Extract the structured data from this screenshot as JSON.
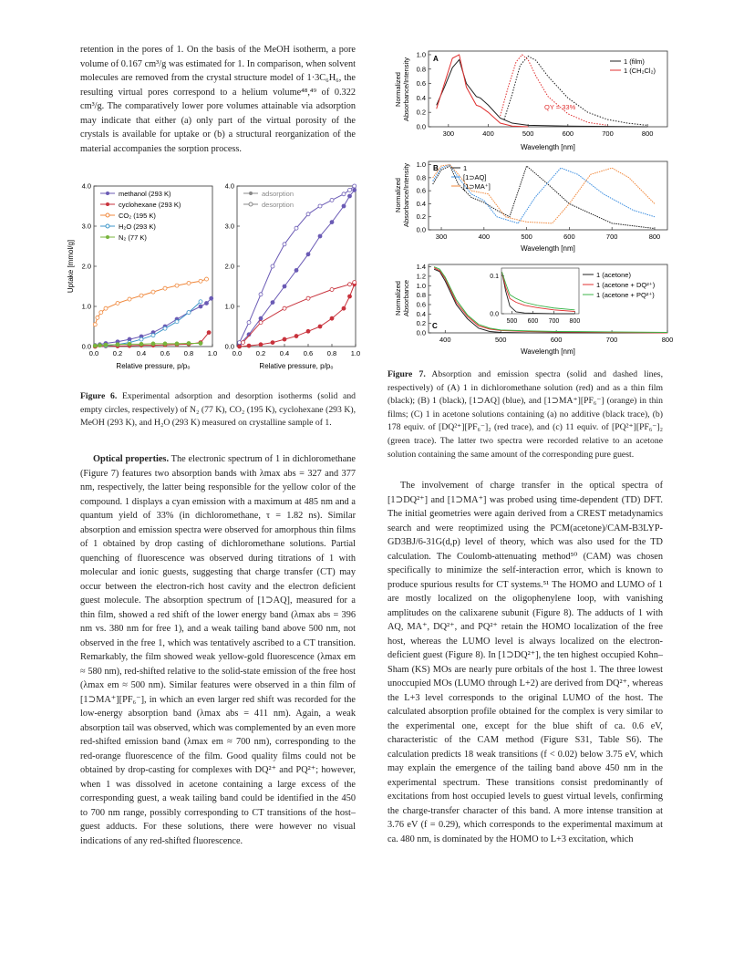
{
  "left_column": {
    "para_intro": "retention in the pores of 1. On the basis of the MeOH isotherm, a pore volume of 0.167 cm³/g was estimated for 1. In comparison, when solvent molecules are removed from the crystal structure model of 1·3C₆H₆, the resulting virtual pores correspond to a helium volume⁴⁸,⁴⁹ of 0.322 cm³/g. The comparatively lower pore volumes attainable via adsorption may indicate that either (a) only part of the virtual porosity of the crystals is available for uptake or (b) a structural reorganization of the material accompanies the sorption process.",
    "fig6_caption_label": "Figure 6.",
    "fig6_caption_text": " Experimental adsorption and desorption isotherms (solid and empty circles, respectively) of N₂ (77 K), CO₂ (195 K), cyclohexane (293 K), MeOH (293 K), and H₂O (293 K) measured on crystalline sample of 1.",
    "optical_heading": "Optical properties.",
    "optical_text": " The electronic spectrum of 1 in dichloromethane (Figure 7) features two absorption bands with λmax abs = 327 and 377 nm, respectively, the latter being responsible for the yellow color of the compound. 1 displays a cyan emission with a maximum at 485 nm and a quantum yield of 33% (in dichloromethane, τ = 1.82 ns). Similar absorption and emission spectra were observed for amorphous thin films of 1 obtained by drop casting of dichloromethane solutions. Partial quenching of fluorescence was observed during titrations of 1 with molecular and ionic guests, suggesting that charge transfer (CT) may occur between the electron-rich host cavity and the electron deficient guest molecule. The absorption spectrum of [1⊃AQ], measured for a thin film, showed a red shift of the lower energy band (λmax abs = 396 nm vs. 380 nm for free 1), and a weak tailing band above 500 nm, not observed in the free 1, which was tentatively ascribed to a CT transition. Remarkably, the film showed weak yellow-gold fluorescence (λmax em ≈ 580 nm), red-shifted relative to the solid-state emission of the free host (λmax em ≈ 500 nm). Similar features were observed in a thin film of [1⊃MA⁺][PF₆⁻], in which an even larger red shift was recorded for the low-energy absorption band (λmax abs = 411 nm). Again, a weak absorption tail was observed, which was complemented by an even more red-shifted emission band (λmax em ≈ 700 nm), corresponding to the red-orange fluorescence of the film. Good quality films could not be obtained by drop-casting for complexes with DQ²⁺ and PQ²⁺; however, when 1 was dissolved in acetone containing a large excess of the corresponding guest, a weak tailing band could be identified in the 450 to 700 nm range, possibly corresponding to CT transitions of the host–guest adducts. For these solutions, there were however no visual indications of any red-shifted fluorescence."
  },
  "right_column": {
    "fig7_caption_label": "Figure 7.",
    "fig7_caption_text": " Absorption and emission spectra (solid and dashed lines, respectively) of (A) 1 in dichloromethane solution (red) and as a thin film (black); (B) 1 (black), [1⊃AQ] (blue), and [1⊃MA⁺][PF₆⁻] (orange) in thin films; (C) 1 in acetone solutions containing (a) no additive (black trace), (b) 178 equiv. of [DQ²⁺][PF₆⁻]₂ (red trace), and (c) 11 equiv. of [PQ²⁺][PF₆⁻]₂ (green trace). The latter two spectra were recorded relative to an acetone solution containing the same amount of the corresponding pure guest.",
    "ct_text": "The involvement of charge transfer in the optical spectra of [1⊃DQ²⁺] and [1⊃MA⁺] was probed using time-dependent (TD) DFT. The initial geometries were again derived from a CREST metadynamics search and were reoptimized using the PCM(acetone)/CAM-B3LYP-GD3BJ/6-31G(d,p) level of theory, which was also used for the TD calculation. The Coulomb-attenuating method⁵⁰ (CAM) was chosen specifically to minimize the self-interaction error, which is known to produce spurious results for CT systems.⁵¹ The HOMO and LUMO of 1 are mostly localized on the oligophenylene loop, with vanishing amplitudes on the calixarene subunit (Figure 8). The adducts of 1 with AQ, MA⁺, DQ²⁺, and PQ²⁺ retain the HOMO localization of the free host, whereas the LUMO level is always localized on the electron-deficient guest (Figure 8). In [1⊃DQ²⁺], the ten highest occupied Kohn–Sham (KS) MOs are nearly pure orbitals of the host 1. The three lowest unoccupied MOs (LUMO through L+2) are derived from DQ²⁺, whereas the L+3 level corresponds to the original LUMO of the host. The calculated absorption profile obtained for the complex is very similar to the experimental one, except for the blue shift of ca. 0.6 eV, characteristic of the CAM method (Figure S31, Table S6). The calculation predicts 18 weak transitions (f < 0.02) below 3.75 eV, which may explain the emergence of the tailing band above 450 nm in the experimental spectrum. These transitions consist predominantly of excitations from host occupied levels to guest virtual levels, confirming the charge-transfer character of this band. A more intense transition at 3.76 eV (f = 0.29), which corresponds to the experimental maximum at ca. 480 nm, is dominated by the HOMO to L+3 excitation, which"
  },
  "fig6": {
    "ylabel": "Uptake [mmol/g]",
    "xlabel": "Relative pressure, p/p₀",
    "yticks": [
      "0.0",
      "1.0",
      "2.0",
      "3.0",
      "4.0"
    ],
    "xticks": [
      "0.0",
      "0.2",
      "0.4",
      "0.6",
      "0.8",
      "1.0"
    ],
    "legend_left": [
      "methanol (293 K)",
      "cyclohexane (293 K)",
      "CO₂ (195 K)",
      "H₂O (293 K)",
      "N₂ (77 K)"
    ],
    "legend_right": [
      "adsorption",
      "desorption"
    ],
    "colors": {
      "methanol": "#6b5bb5",
      "cyclohexane": "#c8323c",
      "co2": "#f0883c",
      "h2o": "#3c96c8",
      "n2": "#78b43c"
    }
  },
  "fig7": {
    "ylabel_ab": [
      "Normalized",
      "Absorbance/Intensity"
    ],
    "ylabel_c": [
      "Normalized",
      "Absorbance"
    ],
    "xlabel": "Wavelength [nm]",
    "panelA": {
      "tag": "A",
      "legend": [
        "1 (film)",
        "1 (CH₂Cl₂)"
      ],
      "qy": "QY = 33%",
      "xticks": [
        "300",
        "400",
        "500",
        "600",
        "700",
        "800"
      ],
      "yticks": [
        "0.0",
        "0.2",
        "0.4",
        "0.6",
        "0.8",
        "1.0"
      ]
    },
    "panelB": {
      "tag": "B",
      "legend": [
        "1",
        "[1⊃AQ]",
        "[1⊃MA⁺]"
      ],
      "xticks": [
        "300",
        "400",
        "500",
        "600",
        "700",
        "800"
      ],
      "yticks": [
        "0.0",
        "0.2",
        "0.4",
        "0.6",
        "0.8",
        "1.0"
      ]
    },
    "panelC": {
      "tag": "C",
      "legend": [
        "1 (acetone)",
        "1 (acetone + DQ²⁺)",
        "1 (acetone + PQ²⁺)"
      ],
      "xticks": [
        "400",
        "500",
        "600",
        "700",
        "800"
      ],
      "yticks": [
        "0.0",
        "0.2",
        "0.4",
        "0.6",
        "0.8",
        "1.0",
        "1.2",
        "1.4"
      ],
      "inset_xticks": [
        "500",
        "600",
        "700",
        "800"
      ],
      "inset_yticks": [
        "0.0",
        "0.1"
      ]
    }
  },
  "chart_data": [
    {
      "type": "scatter",
      "title": "",
      "xlabel": "Relative pressure, p/p₀",
      "ylabel": "Uptake [mmol/g]",
      "xlim": [
        0,
        1.0
      ],
      "ylim": [
        0,
        4.0
      ],
      "series": [
        {
          "name": "methanol (293 K)",
          "x": [
            0.01,
            0.05,
            0.1,
            0.2,
            0.3,
            0.4,
            0.5,
            0.6,
            0.7,
            0.8,
            0.9,
            0.95,
            0.99
          ],
          "y": [
            0.03,
            0.05,
            0.08,
            0.12,
            0.18,
            0.25,
            0.35,
            0.5,
            0.68,
            0.85,
            1.0,
            1.08,
            1.2
          ]
        },
        {
          "name": "cyclohexane (293 K)",
          "x": [
            0.01,
            0.1,
            0.2,
            0.3,
            0.4,
            0.5,
            0.6,
            0.7,
            0.8,
            0.9,
            0.97
          ],
          "y": [
            0.0,
            0.01,
            0.01,
            0.02,
            0.03,
            0.03,
            0.04,
            0.05,
            0.06,
            0.1,
            0.35
          ]
        },
        {
          "name": "CO₂ (195 K)",
          "x": [
            0.01,
            0.03,
            0.06,
            0.1,
            0.2,
            0.3,
            0.4,
            0.5,
            0.6,
            0.7,
            0.8,
            0.9,
            0.95
          ],
          "y": [
            0.55,
            0.72,
            0.85,
            0.95,
            1.08,
            1.18,
            1.27,
            1.36,
            1.45,
            1.52,
            1.58,
            1.63,
            1.68
          ]
        },
        {
          "name": "H₂O (293 K)",
          "x": [
            0.1,
            0.2,
            0.3,
            0.4,
            0.5,
            0.6,
            0.7,
            0.8,
            0.9
          ],
          "y": [
            0.02,
            0.05,
            0.1,
            0.18,
            0.28,
            0.45,
            0.62,
            0.85,
            1.12
          ]
        },
        {
          "name": "N₂ (77 K)",
          "x": [
            0.01,
            0.05,
            0.1,
            0.2,
            0.3,
            0.4,
            0.5,
            0.6,
            0.7,
            0.8,
            0.9
          ],
          "y": [
            0.02,
            0.03,
            0.04,
            0.05,
            0.06,
            0.06,
            0.07,
            0.07,
            0.07,
            0.08,
            0.08
          ]
        }
      ]
    },
    {
      "type": "scatter",
      "title": "",
      "xlabel": "Relative pressure, p/p₀",
      "ylim": [
        0,
        4.0
      ],
      "xlim": [
        0,
        1.0
      ],
      "series": [
        {
          "name": "adsorption",
          "x": [
            0.02,
            0.1,
            0.2,
            0.3,
            0.4,
            0.5,
            0.6,
            0.7,
            0.8,
            0.9,
            0.95,
            0.99
          ],
          "y": [
            0.05,
            0.3,
            0.7,
            1.1,
            1.5,
            1.9,
            2.3,
            2.75,
            3.1,
            3.5,
            3.75,
            3.9
          ]
        },
        {
          "name": "desorption",
          "x": [
            0.02,
            0.1,
            0.2,
            0.3,
            0.4,
            0.5,
            0.6,
            0.7,
            0.8,
            0.9,
            0.95,
            0.99
          ],
          "y": [
            0.1,
            0.6,
            1.3,
            2.0,
            2.55,
            2.95,
            3.3,
            3.5,
            3.65,
            3.8,
            3.9,
            4.0
          ]
        },
        {
          "name": "cyclohexane adsorption",
          "x": [
            0.02,
            0.1,
            0.2,
            0.3,
            0.4,
            0.5,
            0.6,
            0.7,
            0.8,
            0.9,
            0.95,
            0.99
          ],
          "y": [
            0.0,
            0.02,
            0.05,
            0.1,
            0.18,
            0.26,
            0.38,
            0.5,
            0.7,
            0.95,
            1.25,
            1.55
          ]
        },
        {
          "name": "cyclohexane desorption",
          "x": [
            0.05,
            0.2,
            0.4,
            0.6,
            0.8,
            0.95,
            0.99
          ],
          "y": [
            0.1,
            0.6,
            0.95,
            1.2,
            1.42,
            1.55,
            1.6
          ]
        }
      ]
    },
    {
      "type": "line",
      "title": "",
      "xlabel": "Wavelength [nm]",
      "xlim": [
        250,
        850
      ],
      "ylim": [
        0,
        1.05
      ],
      "series": [
        {
          "name": "1 (film) absorption",
          "x": [
            270,
            290,
            310,
            327,
            345,
            370,
            380,
            400,
            430,
            460,
            500,
            600,
            800
          ],
          "y": [
            0.3,
            0.55,
            0.82,
            0.93,
            0.6,
            0.42,
            0.4,
            0.3,
            0.12,
            0.05,
            0.02,
            0.01,
            0.0
          ]
        },
        {
          "name": "1 (CH₂Cl₂) absorption",
          "x": [
            270,
            290,
            310,
            327,
            345,
            370,
            380,
            400,
            430,
            460,
            500
          ],
          "y": [
            0.25,
            0.6,
            0.95,
            1.0,
            0.55,
            0.3,
            0.28,
            0.2,
            0.05,
            0.01,
            0.0
          ]
        },
        {
          "name": "1 (film) emission",
          "x": [
            440,
            460,
            480,
            500,
            520,
            550,
            600,
            650,
            700,
            750,
            800
          ],
          "y": [
            0.1,
            0.45,
            0.85,
            0.98,
            0.92,
            0.7,
            0.4,
            0.2,
            0.1,
            0.05,
            0.02
          ]
        },
        {
          "name": "1 (CH₂Cl₂) emission",
          "x": [
            430,
            450,
            470,
            485,
            500,
            520,
            550,
            600,
            650,
            700
          ],
          "y": [
            0.15,
            0.55,
            0.9,
            1.0,
            0.93,
            0.7,
            0.42,
            0.18,
            0.06,
            0.02
          ]
        }
      ]
    },
    {
      "type": "line",
      "title": "",
      "xlabel": "Wavelength [nm]",
      "xlim": [
        280,
        820
      ],
      "ylim": [
        0,
        1.05
      ],
      "series": [
        {
          "name": "1",
          "x": [
            280,
            300,
            320,
            340,
            370,
            400,
            430,
            460,
            500,
            550,
            600,
            700,
            800
          ],
          "y": [
            0.7,
            0.92,
            0.98,
            0.7,
            0.5,
            0.42,
            0.3,
            0.2,
            0.98,
            0.7,
            0.4,
            0.1,
            0.02
          ]
        },
        {
          "name": "[1⊃AQ]",
          "x": [
            280,
            300,
            320,
            340,
            370,
            400,
            430,
            480,
            520,
            580,
            620,
            680,
            750,
            800
          ],
          "y": [
            0.75,
            0.95,
            1.0,
            0.8,
            0.55,
            0.45,
            0.2,
            0.1,
            0.5,
            0.95,
            0.85,
            0.55,
            0.3,
            0.2
          ]
        },
        {
          "name": "[1⊃MA⁺]",
          "x": [
            280,
            300,
            320,
            340,
            370,
            410,
            450,
            500,
            560,
            600,
            650,
            700,
            740,
            800
          ],
          "y": [
            0.8,
            0.98,
            1.0,
            0.85,
            0.6,
            0.55,
            0.2,
            0.12,
            0.1,
            0.4,
            0.85,
            0.95,
            0.8,
            0.4
          ]
        }
      ]
    },
    {
      "type": "line",
      "title": "",
      "xlabel": "Wavelength [nm]",
      "xlim": [
        370,
        800
      ],
      "ylim": [
        0,
        1.4
      ],
      "series": [
        {
          "name": "1 (acetone)",
          "x": [
            380,
            390,
            400,
            420,
            440,
            460,
            480,
            500,
            550,
            600,
            700,
            800
          ],
          "y": [
            1.35,
            1.3,
            1.1,
            0.6,
            0.3,
            0.1,
            0.03,
            0.01,
            0.0,
            0.0,
            0.0,
            0.0
          ]
        },
        {
          "name": "1 (acetone + DQ²⁺)",
          "x": [
            380,
            390,
            400,
            420,
            440,
            460,
            480,
            500,
            550,
            600,
            700,
            800
          ],
          "y": [
            1.38,
            1.32,
            1.15,
            0.65,
            0.35,
            0.15,
            0.08,
            0.05,
            0.03,
            0.02,
            0.01,
            0.0
          ]
        },
        {
          "name": "1 (acetone + PQ²⁺)",
          "x": [
            380,
            390,
            400,
            420,
            440,
            460,
            480,
            500,
            550,
            600,
            700,
            800
          ],
          "y": [
            1.4,
            1.35,
            1.18,
            0.7,
            0.38,
            0.18,
            0.1,
            0.06,
            0.04,
            0.03,
            0.02,
            0.01
          ]
        }
      ]
    }
  ]
}
